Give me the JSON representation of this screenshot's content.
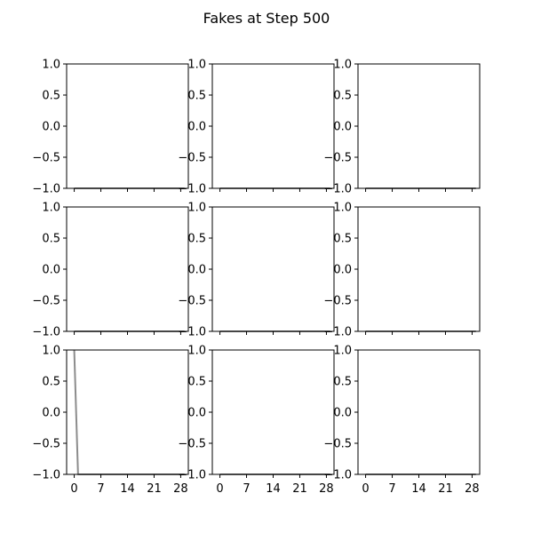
{
  "figure": {
    "title": "Fakes at Step 500"
  },
  "colors": {
    "background": "#ffffff",
    "axes": "#000000",
    "line": "#8c8c8c"
  },
  "chart_data": {
    "type": "line",
    "grid": false,
    "rows": 3,
    "cols": 3,
    "xlim": [
      -2,
      30
    ],
    "ylim": [
      -1.0,
      1.0
    ],
    "xticks": [
      0,
      7,
      14,
      21,
      28
    ],
    "xtick_labels": [
      "0",
      "7",
      "14",
      "21",
      "28"
    ],
    "yticks": [
      1.0,
      0.5,
      0.0,
      -0.5,
      -1.0
    ],
    "ytick_labels": [
      "1.0",
      "0.5",
      "0.0",
      "−0.5",
      "−1.0"
    ],
    "subplots": [
      {
        "name": "r1c1",
        "x": [
          0,
          1,
          2,
          3,
          4,
          5,
          6,
          7,
          8,
          9,
          10,
          11,
          12,
          13,
          14,
          15,
          16,
          17,
          18,
          19,
          20,
          21,
          22,
          23,
          24,
          25,
          26,
          27,
          28,
          29
        ],
        "y": [
          -1,
          -1,
          -1,
          -1,
          -1,
          -1,
          -1,
          -1,
          -1,
          -1,
          -1,
          -1,
          -1,
          -1,
          -1,
          -1,
          -1,
          -1,
          -1,
          -1,
          -1,
          -1,
          -1,
          -1,
          -1,
          -1,
          -1,
          -1,
          -1,
          -1
        ]
      },
      {
        "name": "r1c2",
        "x": [
          0,
          1,
          2,
          3,
          4,
          5,
          6,
          7,
          8,
          9,
          10,
          11,
          12,
          13,
          14,
          15,
          16,
          17,
          18,
          19,
          20,
          21,
          22,
          23,
          24,
          25,
          26,
          27,
          28,
          29
        ],
        "y": [
          -1,
          -1,
          -1,
          -1,
          -1,
          -1,
          -1,
          -1,
          -1,
          -1,
          -1,
          -1,
          -1,
          -1,
          -1,
          -1,
          -1,
          -1,
          -1,
          -1,
          -1,
          -1,
          -1,
          -1,
          -1,
          -1,
          -1,
          -1,
          -1,
          -1
        ]
      },
      {
        "name": "r1c3",
        "x": [
          0,
          1,
          2,
          3,
          4,
          5,
          6,
          7,
          8,
          9,
          10,
          11,
          12,
          13,
          14,
          15,
          16,
          17,
          18,
          19,
          20,
          21,
          22,
          23,
          24,
          25,
          26,
          27,
          28,
          29
        ],
        "y": [
          -1,
          -1,
          -1,
          -1,
          -1,
          -1,
          -1,
          -1,
          -1,
          -1,
          -1,
          -1,
          -1,
          -1,
          -1,
          -1,
          -1,
          -1,
          -1,
          -1,
          -1,
          -1,
          -1,
          -1,
          -1,
          -1,
          -1,
          -1,
          -1,
          -1
        ]
      },
      {
        "name": "r2c1",
        "x": [
          0,
          1,
          2,
          3,
          4,
          5,
          6,
          7,
          8,
          9,
          10,
          11,
          12,
          13,
          14,
          15,
          16,
          17,
          18,
          19,
          20,
          21,
          22,
          23,
          24,
          25,
          26,
          27,
          28,
          29
        ],
        "y": [
          -1,
          -1,
          -1,
          -1,
          -1,
          -1,
          -1,
          -1,
          -1,
          -1,
          -1,
          -1,
          -1,
          -1,
          -1,
          -1,
          -1,
          -1,
          -1,
          -1,
          -1,
          -1,
          -1,
          -1,
          -1,
          -1,
          -1,
          -1,
          -1,
          -1
        ]
      },
      {
        "name": "r2c2",
        "x": [
          0,
          1,
          2,
          3,
          4,
          5,
          6,
          7,
          8,
          9,
          10,
          11,
          12,
          13,
          14,
          15,
          16,
          17,
          18,
          19,
          20,
          21,
          22,
          23,
          24,
          25,
          26,
          27,
          28,
          29
        ],
        "y": [
          -1,
          -1,
          -1,
          -1,
          -1,
          -1,
          -1,
          -1,
          -1,
          -1,
          -1,
          -1,
          -1,
          -1,
          -1,
          -1,
          -1,
          -1,
          -1,
          -1,
          -1,
          -1,
          -1,
          -1,
          -1,
          -1,
          -1,
          -1,
          -1,
          -1
        ]
      },
      {
        "name": "r2c3",
        "x": [
          0,
          1,
          2,
          3,
          4,
          5,
          6,
          7,
          8,
          9,
          10,
          11,
          12,
          13,
          14,
          15,
          16,
          17,
          18,
          19,
          20,
          21,
          22,
          23,
          24,
          25,
          26,
          27,
          28,
          29
        ],
        "y": [
          -1,
          -1,
          -1,
          -1,
          -1,
          -1,
          -1,
          -1,
          -1,
          -1,
          -1,
          -1,
          -1,
          -1,
          -1,
          -1,
          -1,
          -1,
          -1,
          -1,
          -1,
          -1,
          -1,
          -1,
          -1,
          -1,
          -1,
          -1,
          -1,
          -1
        ]
      },
      {
        "name": "r3c1",
        "x": [
          0,
          1,
          2,
          3,
          4,
          5,
          6,
          7,
          8,
          9,
          10,
          11,
          12,
          13,
          14,
          15,
          16,
          17,
          18,
          19,
          20,
          21,
          22,
          23,
          24,
          25,
          26,
          27,
          28,
          29
        ],
        "y": [
          1,
          -1,
          -1,
          -1,
          -1,
          -1,
          -1,
          -1,
          -1,
          -1,
          -1,
          -1,
          -1,
          -1,
          -1,
          -1,
          -1,
          -1,
          -1,
          -1,
          -1,
          -1,
          -1,
          -1,
          -1,
          -1,
          -1,
          -1,
          -1,
          -1
        ]
      },
      {
        "name": "r3c2",
        "x": [
          0,
          1,
          2,
          3,
          4,
          5,
          6,
          7,
          8,
          9,
          10,
          11,
          12,
          13,
          14,
          15,
          16,
          17,
          18,
          19,
          20,
          21,
          22,
          23,
          24,
          25,
          26,
          27,
          28,
          29
        ],
        "y": [
          -1,
          -1,
          -1,
          -1,
          -1,
          -1,
          -1,
          -1,
          -1,
          -1,
          -1,
          -1,
          -1,
          -1,
          -1,
          -1,
          -1,
          -1,
          -1,
          -1,
          -1,
          -1,
          -1,
          -1,
          -1,
          -1,
          -1,
          -1,
          -1,
          -1
        ]
      },
      {
        "name": "r3c3",
        "x": [
          0,
          1,
          2,
          3,
          4,
          5,
          6,
          7,
          8,
          9,
          10,
          11,
          12,
          13,
          14,
          15,
          16,
          17,
          18,
          19,
          20,
          21,
          22,
          23,
          24,
          25,
          26,
          27,
          28,
          29
        ],
        "y": [
          -1,
          -1,
          -1,
          -1,
          -1,
          -1,
          -1,
          -1,
          -1,
          -1,
          -1,
          -1,
          -1,
          -1,
          -1,
          -1,
          -1,
          -1,
          -1,
          -1,
          -1,
          -1,
          -1,
          -1,
          -1,
          -1,
          -1,
          -1,
          -1,
          -1
        ]
      }
    ]
  }
}
